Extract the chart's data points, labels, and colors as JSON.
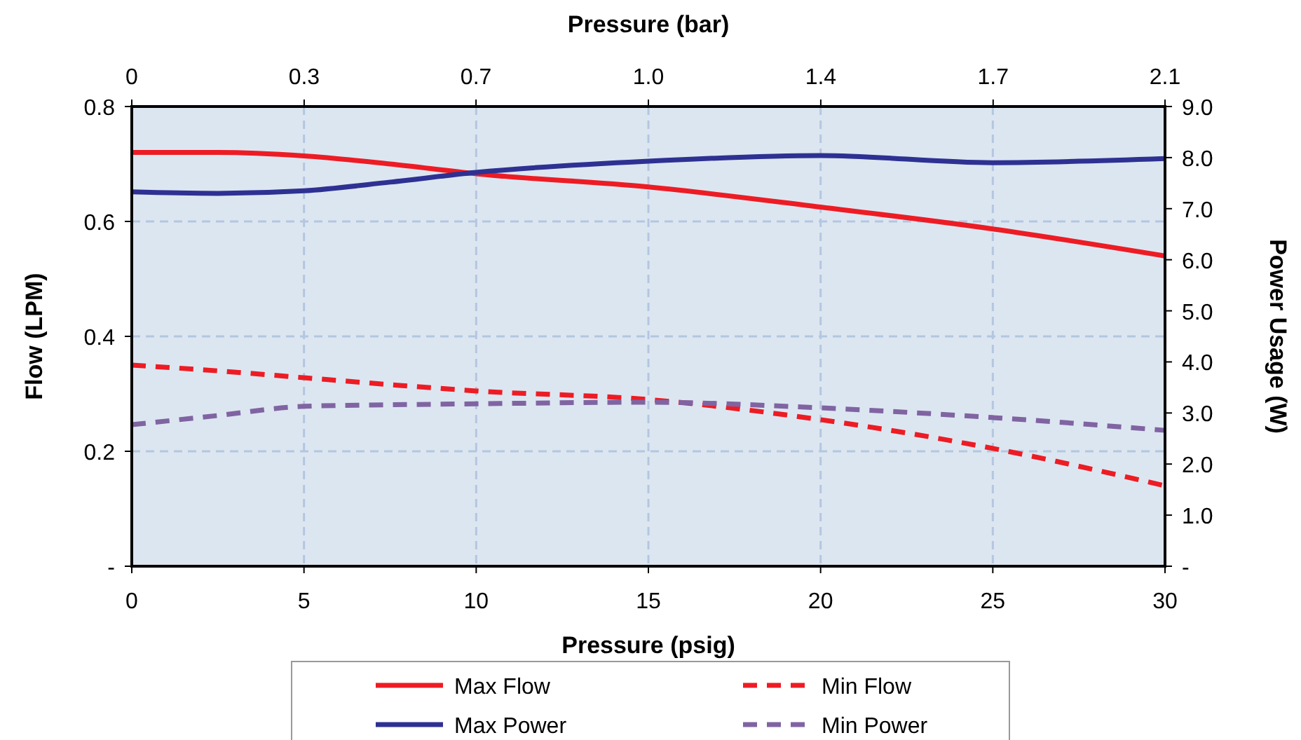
{
  "chart_data": {
    "type": "line",
    "xlabel": "Pressure (psig)",
    "x2label": "Pressure (bar)",
    "ylabel": "Flow (LPM)",
    "y2label": "Power Usage  (W)",
    "x": [
      0,
      2.5,
      5,
      7.5,
      10,
      15,
      20,
      25,
      30
    ],
    "xlim": [
      0,
      30
    ],
    "xticks": [
      0,
      5,
      10,
      15,
      20,
      25,
      30
    ],
    "x2lim": [
      0,
      2.068
    ],
    "x2ticks": [
      {
        "value": 0,
        "label": "0"
      },
      {
        "value": 0.345,
        "label": "0.3"
      },
      {
        "value": 0.689,
        "label": "0.7"
      },
      {
        "value": 1.034,
        "label": "1.0"
      },
      {
        "value": 1.379,
        "label": "1.4"
      },
      {
        "value": 1.724,
        "label": "1.7"
      },
      {
        "value": 2.068,
        "label": "2.1"
      }
    ],
    "ylim": [
      0,
      0.8
    ],
    "yticks": [
      {
        "value": 0,
        "label": "-"
      },
      0.2,
      0.4,
      0.6,
      0.8
    ],
    "y2lim": [
      0,
      9
    ],
    "y2ticks": [
      {
        "value": 0,
        "label": "-"
      },
      {
        "value": 1,
        "label": "1.0"
      },
      {
        "value": 2,
        "label": "2.0"
      },
      {
        "value": 3,
        "label": "3.0"
      },
      {
        "value": 4,
        "label": "4.0"
      },
      {
        "value": 5,
        "label": "5.0"
      },
      {
        "value": 6,
        "label": "6.0"
      },
      {
        "value": 7,
        "label": "7.0"
      },
      {
        "value": 8,
        "label": "8.0"
      },
      {
        "value": 9,
        "label": "9.0"
      }
    ],
    "grid": true,
    "legend": "bottom",
    "series": [
      {
        "name": "Max Flow",
        "color": "#ed1c24",
        "line_style": "solid",
        "values": [
          0.72,
          0.72,
          0.714,
          0.7,
          0.683,
          0.66,
          0.625,
          0.587,
          0.54
        ]
      },
      {
        "name": "Min Flow",
        "color": "#ed1c24",
        "line_style": "dashed",
        "values": [
          0.35,
          0.34,
          0.328,
          0.316,
          0.305,
          0.29,
          0.255,
          0.205,
          0.14
        ]
      },
      {
        "name": "Max Power",
        "color": "#2e3192",
        "line_style": "solid",
        "axis": "y2",
        "values": [
          7.33,
          7.3,
          7.35,
          7.52,
          7.71,
          7.93,
          8.04,
          7.9,
          7.98
        ]
      },
      {
        "name": "Min Power",
        "color": "#8064a2",
        "line_style": "dashed",
        "axis": "y2",
        "values": [
          2.77,
          2.95,
          3.13,
          3.16,
          3.18,
          3.21,
          3.1,
          2.91,
          2.66
        ]
      }
    ]
  }
}
